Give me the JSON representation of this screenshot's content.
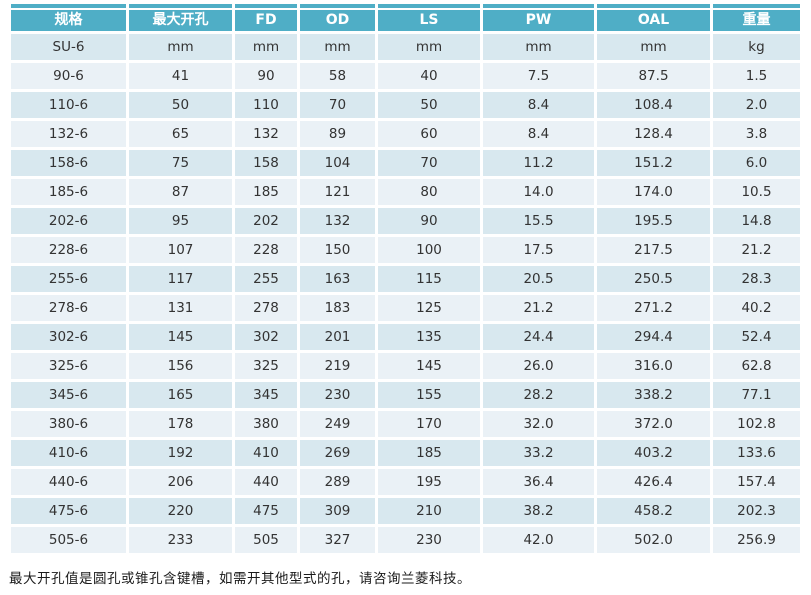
{
  "colors": {
    "header_bg": "#4FAEC6",
    "row_dark": "#D8E8EF",
    "row_light": "#EAF1F6",
    "header_text": "#FFFFFF",
    "body_text": "#333333",
    "separator": "#FFFFFF"
  },
  "table": {
    "headers": [
      "规格",
      "最大开孔",
      "FD",
      "OD",
      "LS",
      "PW",
      "OAL",
      "重量"
    ],
    "rows": [
      [
        "SU-6",
        "mm",
        "mm",
        "mm",
        "mm",
        "mm",
        "mm",
        "kg"
      ],
      [
        "90-6",
        "41",
        "90",
        "58",
        "40",
        "7.5",
        "87.5",
        "1.5"
      ],
      [
        "110-6",
        "50",
        "110",
        "70",
        "50",
        "8.4",
        "108.4",
        "2.0"
      ],
      [
        "132-6",
        "65",
        "132",
        "89",
        "60",
        "8.4",
        "128.4",
        "3.8"
      ],
      [
        "158-6",
        "75",
        "158",
        "104",
        "70",
        "11.2",
        "151.2",
        "6.0"
      ],
      [
        "185-6",
        "87",
        "185",
        "121",
        "80",
        "14.0",
        "174.0",
        "10.5"
      ],
      [
        "202-6",
        "95",
        "202",
        "132",
        "90",
        "15.5",
        "195.5",
        "14.8"
      ],
      [
        "228-6",
        "107",
        "228",
        "150",
        "100",
        "17.5",
        "217.5",
        "21.2"
      ],
      [
        "255-6",
        "117",
        "255",
        "163",
        "115",
        "20.5",
        "250.5",
        "28.3"
      ],
      [
        "278-6",
        "131",
        "278",
        "183",
        "125",
        "21.2",
        "271.2",
        "40.2"
      ],
      [
        "302-6",
        "145",
        "302",
        "201",
        "135",
        "24.4",
        "294.4",
        "52.4"
      ],
      [
        "325-6",
        "156",
        "325",
        "219",
        "145",
        "26.0",
        "316.0",
        "62.8"
      ],
      [
        "345-6",
        "165",
        "345",
        "230",
        "155",
        "28.2",
        "338.2",
        "77.1"
      ],
      [
        "380-6",
        "178",
        "380",
        "249",
        "170",
        "32.0",
        "372.0",
        "102.8"
      ],
      [
        "410-6",
        "192",
        "410",
        "269",
        "185",
        "33.2",
        "403.2",
        "133.6"
      ],
      [
        "440-6",
        "206",
        "440",
        "289",
        "195",
        "36.4",
        "426.4",
        "157.4"
      ],
      [
        "475-6",
        "220",
        "475",
        "309",
        "210",
        "38.2",
        "458.2",
        "202.3"
      ],
      [
        "505-6",
        "233",
        "505",
        "327",
        "230",
        "42.0",
        "502.0",
        "256.9"
      ]
    ]
  },
  "footnote": "最大开孔值是圆孔或锥孔含键槽，如需开其他型式的孔，请咨询兰菱科技。"
}
